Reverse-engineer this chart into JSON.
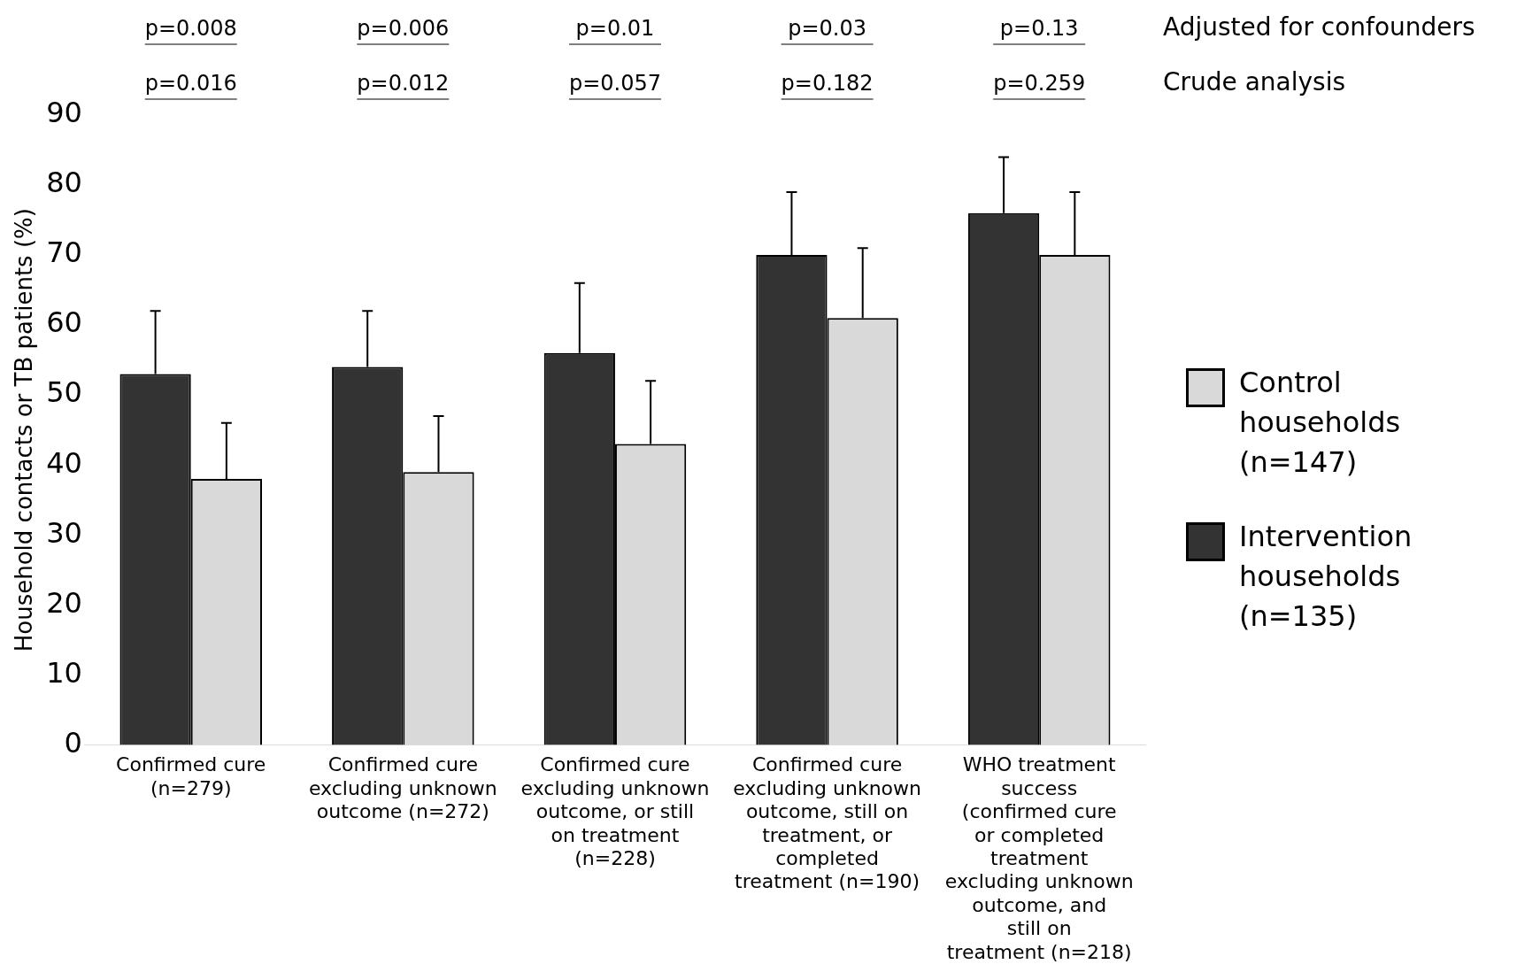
{
  "chart_data": {
    "type": "bar",
    "categories": [
      "Confirmed cure (n=279)",
      "Confirmed cure excluding unknown outcome (n=272)",
      "Confirmed cure excluding unknown outcome, or still on treatment (n=228)",
      "Confirmed cure excluding unknown outcome, still on treatment, or completed treatment (n=190)",
      "WHO treatment success (confirmed cure or completed treatment excluding unknown outcome, and still on treatment (n=218)"
    ],
    "series": [
      {
        "name": "Intervention households (n=135)",
        "color": "#333333",
        "values": [
          53,
          54,
          56,
          70,
          76
        ],
        "errors": [
          [
            53,
            62
          ],
          [
            54,
            62
          ],
          [
            56,
            66
          ],
          [
            70,
            79
          ],
          [
            76,
            84
          ]
        ]
      },
      {
        "name": "Control households (n=147)",
        "color": "#d9d9d9",
        "values": [
          38,
          39,
          43,
          61,
          70
        ],
        "errors": [
          [
            38,
            46
          ],
          [
            39,
            47
          ],
          [
            43,
            52
          ],
          [
            61,
            71
          ],
          [
            70,
            79
          ]
        ]
      }
    ],
    "ylabel": "Household contacts or TB patients (%)",
    "ylim": [
      0,
      90
    ],
    "yticks": [
      0,
      10,
      20,
      30,
      40,
      50,
      60,
      70,
      80,
      90
    ],
    "grid": false,
    "legend": "right",
    "annotations": [
      "p=0.008",
      "p=0.006",
      "p=0.01",
      "p=0.03",
      "p=0.13",
      "Adjusted for confounders",
      "p=0.016",
      "p=0.012",
      "p=0.057",
      "p=0.182",
      "p=0.259",
      "Crude analysis"
    ]
  }
}
